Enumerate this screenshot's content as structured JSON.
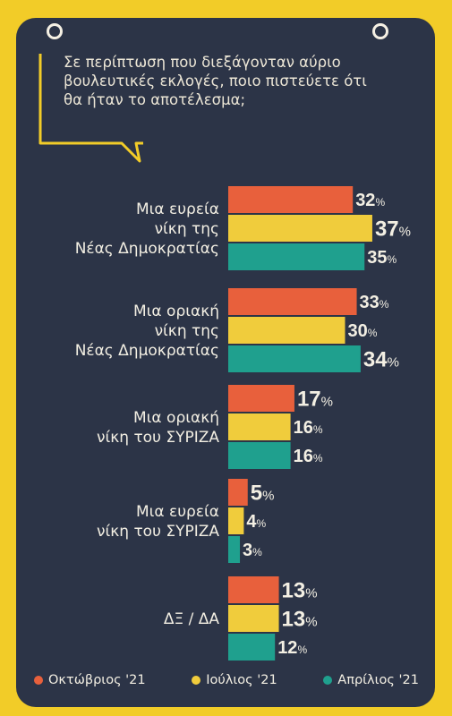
{
  "question": "Σε περίπτωση που διεξάγονταν αύριο βουλευτικές εκλογές, ποιο πιστεύετε ότι θα ήταν το αποτέλεσμα;",
  "colors": {
    "background": "#f2cc28",
    "panel": "#2c3447",
    "october": "#e8603c",
    "july": "#f0cc3c",
    "april": "#1fa08e"
  },
  "legend": [
    {
      "label": "Οκτώβριος '21",
      "color": "#e8603c"
    },
    {
      "label": "Ιούλιος '21",
      "color": "#f0cc3c"
    },
    {
      "label": "Απρίλιος '21",
      "color": "#1fa08e"
    }
  ],
  "chart_data": {
    "type": "bar",
    "orientation": "horizontal",
    "title": "Σε περίπτωση που διεξάγονταν αύριο βουλευτικές εκλογές, ποιο πιστεύετε ότι θα ήταν το αποτέλεσμα;",
    "categories": [
      [
        "Μια ευρεία",
        "νίκη της",
        "Νέας Δημοκρατίας"
      ],
      [
        "Μια οριακή",
        "νίκη της",
        "Νέας Δημοκρατίας"
      ],
      [
        "Μια οριακή",
        "νίκη του ΣΥΡΙΖΑ"
      ],
      [
        "Μια ευρεία",
        "νίκη του ΣΥΡΙΖΑ"
      ],
      [
        "ΔΞ / ΔΑ"
      ]
    ],
    "series": [
      {
        "name": "Οκτώβριος '21",
        "color": "#e8603c",
        "values": [
          32,
          33,
          17,
          5,
          13
        ]
      },
      {
        "name": "Ιούλιος '21",
        "color": "#f0cc3c",
        "values": [
          37,
          30,
          16,
          4,
          13
        ]
      },
      {
        "name": "Απρίλιος '21",
        "color": "#1fa08e",
        "values": [
          35,
          34,
          16,
          3,
          12
        ]
      }
    ],
    "unit": "%",
    "grid": false,
    "legend_position": "bottom"
  }
}
